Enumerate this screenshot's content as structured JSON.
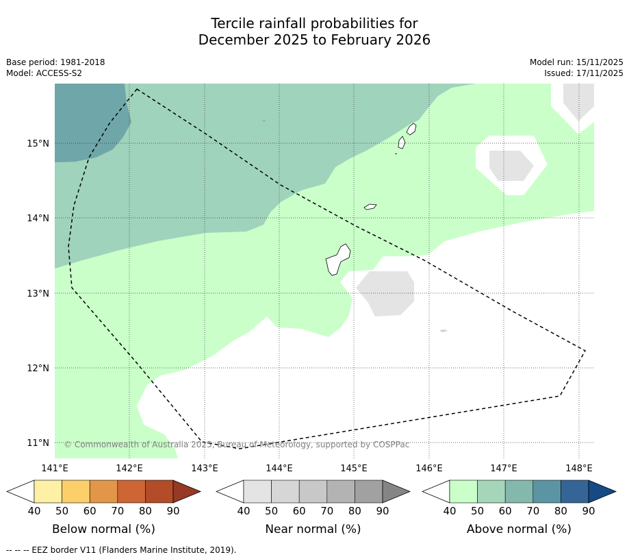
{
  "title_line1": "Tercile rainfall probabilities for",
  "title_line2": "December 2025 to February 2026",
  "meta_left": [
    "Base period: 1981-2018",
    "Model: ACCESS-S2"
  ],
  "meta_right": [
    "Model run: 15/11/2025",
    "Issued: 17/11/2025"
  ],
  "map": {
    "lon_labels": [
      "141°E",
      "142°E",
      "143°E",
      "144°E",
      "145°E",
      "146°E",
      "147°E",
      "148°E"
    ],
    "lat_labels": [
      "15°N",
      "14°N",
      "13°N",
      "12°N",
      "11°N"
    ],
    "copyright": "© Commonwealth of Australia 2025, Bureau of Meteorology, supported by COSPPac"
  },
  "colorbars": [
    {
      "label": "Below normal (%)",
      "ticks": [
        "40",
        "50",
        "60",
        "70",
        "80",
        "90"
      ],
      "colors": [
        "#ffffff",
        "#fef0a5",
        "#fdcf6a",
        "#e29647",
        "#cd6534",
        "#b24c29",
        "#963925"
      ]
    },
    {
      "label": "Near normal (%)",
      "ticks": [
        "40",
        "50",
        "60",
        "70",
        "80",
        "90"
      ],
      "colors": [
        "#ffffff",
        "#e4e4e4",
        "#d6d6d6",
        "#c8c8c8",
        "#b3b3b3",
        "#a1a1a1",
        "#858585"
      ]
    },
    {
      "label": "Above normal (%)",
      "ticks": [
        "40",
        "50",
        "60",
        "70",
        "80",
        "90"
      ],
      "colors": [
        "#ffffff",
        "#caffca",
        "#a5d6b9",
        "#84b8ad",
        "#5b95a3",
        "#356596",
        "#154a84"
      ]
    }
  ],
  "footnote": "-- -- -- EEZ border V11 (Flanders Marine Institute, 2019)."
}
